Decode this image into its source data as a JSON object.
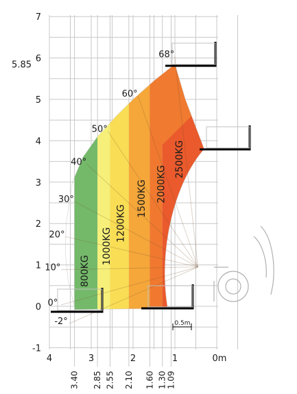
{
  "chart_data": {
    "type": "load_chart",
    "title": "",
    "xlabel": "",
    "ylabel": "",
    "xlim": [
      4,
      -0.1
    ],
    "ylim": [
      -1,
      7
    ],
    "y_ticks": [
      "-1",
      "0",
      "1",
      "2",
      "3",
      "4",
      "5",
      "6",
      "7"
    ],
    "x_ticks": [
      {
        "value": 4,
        "label": "4"
      },
      {
        "value": 3,
        "label": "3"
      },
      {
        "value": 2,
        "label": "2"
      },
      {
        "value": 1,
        "label": "1"
      },
      {
        "value": 0,
        "label": "0m"
      }
    ],
    "extra_y_label": {
      "value": 5.85,
      "label": "5.85"
    },
    "x_under_labels": [
      {
        "value": 3.4,
        "label": "3.40"
      },
      {
        "value": 2.85,
        "label": "2.85"
      },
      {
        "value": 2.55,
        "label": "2.55"
      },
      {
        "value": 2.1,
        "label": "2.10"
      },
      {
        "value": 1.6,
        "label": "1.60"
      },
      {
        "value": 1.3,
        "label": "1.30"
      },
      {
        "value": 1.09,
        "label": "1.09"
      }
    ],
    "boom_angles": [
      {
        "label": "68°",
        "x": 1.2,
        "y": 6.1
      },
      {
        "label": "60°",
        "x": 2.08,
        "y": 5.15
      },
      {
        "label": "50°",
        "x": 2.8,
        "y": 4.3
      },
      {
        "label": "40°",
        "x": 3.3,
        "y": 3.5
      },
      {
        "label": "30°",
        "x": 3.6,
        "y": 2.6
      },
      {
        "label": "20°",
        "x": 3.82,
        "y": 1.75
      },
      {
        "label": "10°",
        "x": 3.92,
        "y": 0.95
      },
      {
        "label": "0°",
        "x": 3.92,
        "y": 0.1
      },
      {
        "label": "-2°",
        "x": 3.72,
        "y": -0.35
      }
    ],
    "load_zones": [
      {
        "label": "800KG",
        "color": "#74b96a",
        "x_left": 3.4,
        "x_right": 2.85
      },
      {
        "label": "1000KG",
        "color": "#f6f07a",
        "x_left": 2.85,
        "x_right": 2.55
      },
      {
        "label": "1200KG",
        "color": "#f9dd55",
        "x_left": 2.55,
        "x_right": 2.1
      },
      {
        "label": "1500KG",
        "color": "#f5a73a",
        "x_left": 2.1,
        "x_right": 1.6
      },
      {
        "label": "2000KG",
        "color": "#f0792f",
        "x_left": 1.6,
        "x_right": 1.3
      },
      {
        "label": "2500KG",
        "color": "#ea5a2c",
        "x_left": 1.3,
        "x_right": 0.3
      }
    ],
    "scale_bar_label": "0.5m",
    "grid": true
  }
}
